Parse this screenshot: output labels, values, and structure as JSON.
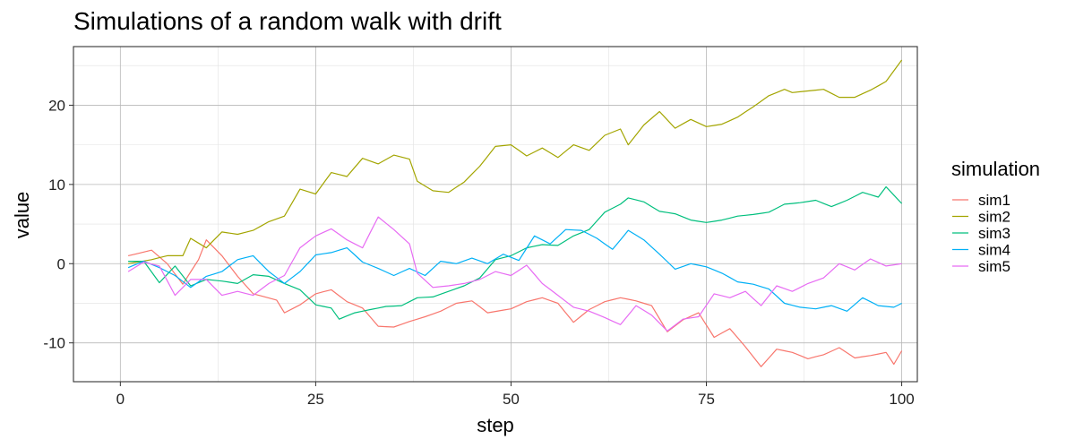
{
  "chart_data": {
    "type": "line",
    "title": "Simulations of a random walk with drift",
    "xlabel": "step",
    "ylabel": "value",
    "xlim": [
      -6,
      102
    ],
    "ylim": [
      -14.9,
      27.4
    ],
    "x_ticks": [
      0,
      25,
      50,
      75,
      100
    ],
    "x_tick_labels": [
      "0",
      "25",
      "50",
      "75",
      "100"
    ],
    "y_ticks": [
      -10,
      0,
      10,
      20
    ],
    "y_tick_labels": [
      "-10",
      "0",
      "10",
      "20"
    ],
    "grid": true,
    "legend": {
      "title": "simulation",
      "position": "right"
    },
    "series": [
      {
        "name": "sim1",
        "color": "#F8766D",
        "anchors": [
          [
            1,
            1
          ],
          [
            4,
            1.7
          ],
          [
            6,
            0
          ],
          [
            8,
            -2.6
          ],
          [
            10,
            0.5
          ],
          [
            11,
            3
          ],
          [
            13,
            1
          ],
          [
            15,
            -1.6
          ],
          [
            17,
            -3.8
          ],
          [
            20,
            -4.6
          ],
          [
            21,
            -6.2
          ],
          [
            23,
            -5.2
          ],
          [
            25,
            -3.8
          ],
          [
            27,
            -3.3
          ],
          [
            29,
            -4.8
          ],
          [
            31,
            -5.6
          ],
          [
            33,
            -7.9
          ],
          [
            35,
            -8
          ],
          [
            37,
            -7.3
          ],
          [
            39,
            -6.7
          ],
          [
            41,
            -6
          ],
          [
            43,
            -5
          ],
          [
            45,
            -4.7
          ],
          [
            47,
            -6.2
          ],
          [
            50,
            -5.7
          ],
          [
            52,
            -4.8
          ],
          [
            54,
            -4.3
          ],
          [
            56,
            -5
          ],
          [
            58,
            -7.4
          ],
          [
            60,
            -5.8
          ],
          [
            62,
            -4.8
          ],
          [
            64,
            -4.3
          ],
          [
            66,
            -4.7
          ],
          [
            68,
            -5.3
          ],
          [
            70,
            -8.6
          ],
          [
            72,
            -7.1
          ],
          [
            74,
            -6.2
          ],
          [
            76,
            -9.3
          ],
          [
            78,
            -8.2
          ],
          [
            80,
            -10.5
          ],
          [
            82,
            -13
          ],
          [
            84,
            -10.8
          ],
          [
            86,
            -11.2
          ],
          [
            88,
            -12
          ],
          [
            90,
            -11.5
          ],
          [
            92,
            -10.6
          ],
          [
            94,
            -11.9
          ],
          [
            96,
            -11.6
          ],
          [
            98,
            -11.2
          ],
          [
            99,
            -12.7
          ],
          [
            100,
            -11
          ]
        ]
      },
      {
        "name": "sim2",
        "color": "#A3A500",
        "anchors": [
          [
            1,
            0
          ],
          [
            4,
            0.5
          ],
          [
            6,
            1
          ],
          [
            8,
            1
          ],
          [
            9,
            3.2
          ],
          [
            11,
            2
          ],
          [
            13,
            4
          ],
          [
            15,
            3.7
          ],
          [
            17,
            4.2
          ],
          [
            19,
            5.3
          ],
          [
            21,
            6
          ],
          [
            23,
            9.4
          ],
          [
            25,
            8.8
          ],
          [
            27,
            11.5
          ],
          [
            29,
            11
          ],
          [
            31,
            13.3
          ],
          [
            33,
            12.6
          ],
          [
            35,
            13.7
          ],
          [
            37,
            13.2
          ],
          [
            38,
            10.4
          ],
          [
            40,
            9.2
          ],
          [
            42,
            9
          ],
          [
            44,
            10.3
          ],
          [
            46,
            12.3
          ],
          [
            48,
            14.8
          ],
          [
            50,
            15
          ],
          [
            52,
            13.6
          ],
          [
            54,
            14.6
          ],
          [
            56,
            13.4
          ],
          [
            58,
            15
          ],
          [
            60,
            14.3
          ],
          [
            62,
            16.2
          ],
          [
            64,
            17
          ],
          [
            65,
            15
          ],
          [
            67,
            17.5
          ],
          [
            69,
            19.2
          ],
          [
            71,
            17.1
          ],
          [
            73,
            18.2
          ],
          [
            75,
            17.3
          ],
          [
            77,
            17.6
          ],
          [
            79,
            18.5
          ],
          [
            81,
            19.8
          ],
          [
            83,
            21.2
          ],
          [
            85,
            22
          ],
          [
            86,
            21.6
          ],
          [
            88,
            21.8
          ],
          [
            90,
            22
          ],
          [
            92,
            21
          ],
          [
            94,
            21
          ],
          [
            96,
            21.9
          ],
          [
            98,
            23
          ],
          [
            100,
            25.7
          ]
        ]
      },
      {
        "name": "sim3",
        "color": "#00BF7D",
        "anchors": [
          [
            1,
            0.3
          ],
          [
            3,
            0.3
          ],
          [
            5,
            -2.4
          ],
          [
            7,
            -0.3
          ],
          [
            9,
            -2.8
          ],
          [
            11,
            -2
          ],
          [
            13,
            -2.2
          ],
          [
            15,
            -2.5
          ],
          [
            17,
            -1.4
          ],
          [
            19,
            -1.6
          ],
          [
            21,
            -2.5
          ],
          [
            23,
            -3.3
          ],
          [
            25,
            -5.2
          ],
          [
            27,
            -5.6
          ],
          [
            28,
            -7
          ],
          [
            30,
            -6.2
          ],
          [
            32,
            -5.8
          ],
          [
            34,
            -5.4
          ],
          [
            36,
            -5.3
          ],
          [
            38,
            -4.3
          ],
          [
            40,
            -4.2
          ],
          [
            42,
            -3.5
          ],
          [
            44,
            -2.8
          ],
          [
            46,
            -1.8
          ],
          [
            48,
            0.5
          ],
          [
            50,
            1
          ],
          [
            52,
            2
          ],
          [
            54,
            2.4
          ],
          [
            56,
            2.3
          ],
          [
            58,
            3.5
          ],
          [
            60,
            4.3
          ],
          [
            62,
            6.5
          ],
          [
            64,
            7.5
          ],
          [
            65,
            8.3
          ],
          [
            67,
            7.8
          ],
          [
            69,
            6.6
          ],
          [
            71,
            6.3
          ],
          [
            73,
            5.5
          ],
          [
            75,
            5.2
          ],
          [
            77,
            5.5
          ],
          [
            79,
            6
          ],
          [
            81,
            6.2
          ],
          [
            83,
            6.5
          ],
          [
            85,
            7.5
          ],
          [
            87,
            7.7
          ],
          [
            89,
            8
          ],
          [
            91,
            7.2
          ],
          [
            93,
            8
          ],
          [
            95,
            9
          ],
          [
            97,
            8.4
          ],
          [
            98,
            9.7
          ],
          [
            100,
            7.6
          ]
        ]
      },
      {
        "name": "sim4",
        "color": "#00B0F6",
        "anchors": [
          [
            1,
            -0.5
          ],
          [
            3,
            0.3
          ],
          [
            5,
            -0.5
          ],
          [
            7,
            -1.5
          ],
          [
            9,
            -3
          ],
          [
            11,
            -1.6
          ],
          [
            13,
            -1
          ],
          [
            15,
            0.5
          ],
          [
            17,
            1
          ],
          [
            19,
            -1
          ],
          [
            21,
            -2.5
          ],
          [
            23,
            -1
          ],
          [
            25,
            1.1
          ],
          [
            27,
            1.4
          ],
          [
            29,
            2
          ],
          [
            31,
            0.2
          ],
          [
            33,
            -0.6
          ],
          [
            35,
            -1.5
          ],
          [
            37,
            -0.6
          ],
          [
            39,
            -1.5
          ],
          [
            41,
            0.3
          ],
          [
            43,
            0
          ],
          [
            45,
            0.7
          ],
          [
            47,
            0
          ],
          [
            49,
            1.2
          ],
          [
            51,
            0.4
          ],
          [
            53,
            3.5
          ],
          [
            55,
            2.5
          ],
          [
            57,
            4.3
          ],
          [
            59,
            4.2
          ],
          [
            61,
            3.2
          ],
          [
            63,
            1.8
          ],
          [
            65,
            4.2
          ],
          [
            67,
            3
          ],
          [
            69,
            1.2
          ],
          [
            71,
            -0.7
          ],
          [
            73,
            0
          ],
          [
            75,
            -0.4
          ],
          [
            77,
            -1.2
          ],
          [
            79,
            -2.3
          ],
          [
            81,
            -2.6
          ],
          [
            83,
            -3.2
          ],
          [
            85,
            -5
          ],
          [
            87,
            -5.5
          ],
          [
            89,
            -5.7
          ],
          [
            91,
            -5.3
          ],
          [
            93,
            -6
          ],
          [
            95,
            -4.3
          ],
          [
            97,
            -5.3
          ],
          [
            99,
            -5.5
          ],
          [
            100,
            -5
          ]
        ]
      },
      {
        "name": "sim5",
        "color": "#E76BF3",
        "anchors": [
          [
            1,
            -1
          ],
          [
            3,
            0.2
          ],
          [
            5,
            -0.3
          ],
          [
            7,
            -4
          ],
          [
            9,
            -2
          ],
          [
            11,
            -2
          ],
          [
            13,
            -4
          ],
          [
            15,
            -3.5
          ],
          [
            17,
            -4
          ],
          [
            19,
            -2.5
          ],
          [
            21,
            -1.5
          ],
          [
            23,
            2
          ],
          [
            25,
            3.5
          ],
          [
            27,
            4.4
          ],
          [
            29,
            3
          ],
          [
            31,
            2
          ],
          [
            33,
            5.9
          ],
          [
            35,
            4.3
          ],
          [
            37,
            2.5
          ],
          [
            38,
            -1.2
          ],
          [
            40,
            -3
          ],
          [
            42,
            -2.8
          ],
          [
            44,
            -2.5
          ],
          [
            46,
            -2
          ],
          [
            48,
            -1
          ],
          [
            50,
            -1.5
          ],
          [
            52,
            -0.2
          ],
          [
            54,
            -2.5
          ],
          [
            56,
            -4
          ],
          [
            58,
            -5.5
          ],
          [
            60,
            -6
          ],
          [
            62,
            -6.8
          ],
          [
            64,
            -7.7
          ],
          [
            66,
            -5.3
          ],
          [
            68,
            -6.5
          ],
          [
            70,
            -8.5
          ],
          [
            72,
            -7
          ],
          [
            74,
            -6.7
          ],
          [
            76,
            -3.8
          ],
          [
            78,
            -4.3
          ],
          [
            80,
            -3.5
          ],
          [
            82,
            -5.3
          ],
          [
            84,
            -2.8
          ],
          [
            86,
            -3.5
          ],
          [
            88,
            -2.5
          ],
          [
            90,
            -1.8
          ],
          [
            92,
            0
          ],
          [
            94,
            -0.8
          ],
          [
            96,
            0.6
          ],
          [
            98,
            -0.3
          ],
          [
            100,
            0
          ]
        ]
      }
    ]
  }
}
